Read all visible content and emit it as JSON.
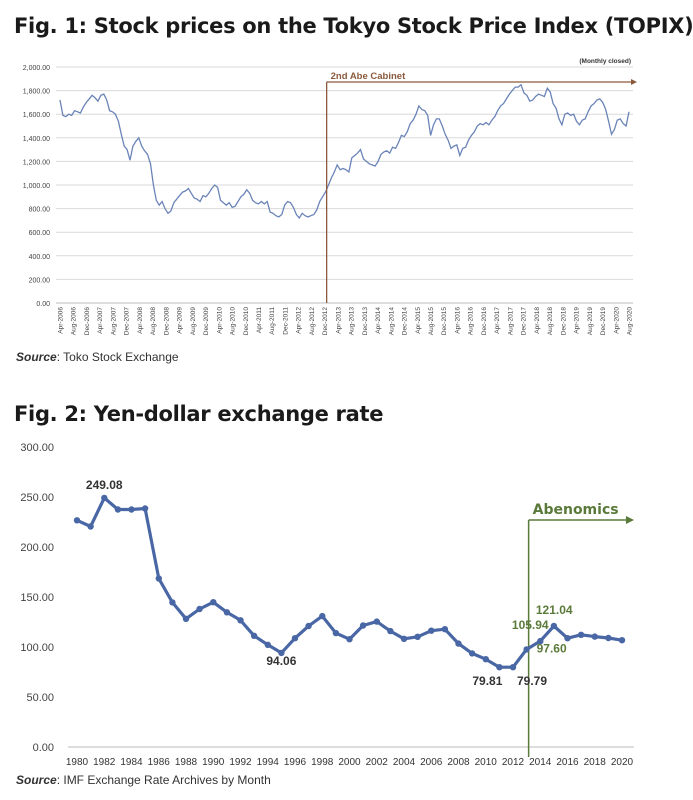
{
  "figures": [
    {
      "title": "Fig. 1: Stock prices on the Tokyo Stock Price Index (TOPIX)",
      "source_label": "Source",
      "source_text": ": Toko Stock Exchange"
    },
    {
      "title": "Fig. 2: Yen-dollar exchange rate",
      "source_label": "Source",
      "source_text": ":  IMF Exchange Rate Archives by Month"
    }
  ],
  "chart_data": [
    {
      "type": "line",
      "title": "Fig. 1: Stock prices on the Tokyo Stock Price Index (TOPIX)",
      "note": "(Monthly closed)",
      "ylim": [
        0,
        2000
      ],
      "yticks": [
        "0.00",
        "200.00",
        "400.00",
        "600.00",
        "800.00",
        "1,000.00",
        "1,200.00",
        "1,400.00",
        "1,600.00",
        "1,800.00",
        "2,000.00"
      ],
      "xticks": [
        "Apr-2006",
        "Aug-2006",
        "Dec-2006",
        "Apr-2007",
        "Aug-2007",
        "Dec-2007",
        "Apr-2008",
        "Aug-2008",
        "Dec-2008",
        "Apr-2009",
        "Aug-2009",
        "Dec-2009",
        "Apr-2010",
        "Aug-2010",
        "Dec-2010",
        "Apr-2011",
        "Aug-2011",
        "Dec-2011",
        "Apr-2012",
        "Aug-2012",
        "Dec-2012",
        "Apr-2013",
        "Aug-2013",
        "Dec-2013",
        "Apr-2014",
        "Aug-2014",
        "Dec-2014",
        "Apr-2015",
        "Aug-2015",
        "Dec-2015",
        "Apr-2016",
        "Aug-2016",
        "Dec-2016",
        "Apr-2017",
        "Aug-2017",
        "Dec-2017",
        "Apr-2018",
        "Aug-2018",
        "Dec-2018",
        "Apr-2019",
        "Aug-2019",
        "Dec-2019",
        "Apr-2020",
        "Aug-2020"
      ],
      "values": [
        1720,
        1590,
        1580,
        1600,
        1590,
        1630,
        1620,
        1610,
        1660,
        1700,
        1730,
        1760,
        1740,
        1710,
        1760,
        1770,
        1720,
        1630,
        1620,
        1600,
        1540,
        1430,
        1330,
        1300,
        1210,
        1330,
        1370,
        1400,
        1330,
        1290,
        1260,
        1180,
        1000,
        870,
        830,
        860,
        800,
        760,
        780,
        850,
        880,
        910,
        940,
        950,
        970,
        930,
        890,
        880,
        860,
        910,
        900,
        930,
        970,
        1000,
        980,
        870,
        850,
        830,
        850,
        810,
        820,
        860,
        900,
        920,
        960,
        930,
        870,
        850,
        840,
        860,
        840,
        860,
        770,
        760,
        740,
        730,
        750,
        830,
        860,
        850,
        810,
        750,
        720,
        760,
        740,
        730,
        740,
        750,
        790,
        860,
        900,
        940,
        1000,
        1060,
        1110,
        1170,
        1130,
        1140,
        1130,
        1110,
        1230,
        1250,
        1270,
        1300,
        1220,
        1200,
        1180,
        1170,
        1160,
        1200,
        1260,
        1280,
        1290,
        1270,
        1320,
        1310,
        1360,
        1420,
        1410,
        1450,
        1520,
        1550,
        1600,
        1670,
        1640,
        1630,
        1590,
        1420,
        1510,
        1560,
        1560,
        1500,
        1430,
        1380,
        1310,
        1330,
        1340,
        1250,
        1310,
        1320,
        1380,
        1420,
        1450,
        1500,
        1520,
        1510,
        1530,
        1510,
        1550,
        1580,
        1630,
        1670,
        1690,
        1730,
        1770,
        1800,
        1830,
        1830,
        1850,
        1780,
        1760,
        1710,
        1720,
        1750,
        1770,
        1760,
        1750,
        1820,
        1790,
        1690,
        1650,
        1560,
        1510,
        1600,
        1610,
        1590,
        1600,
        1540,
        1510,
        1550,
        1560,
        1620,
        1670,
        1690,
        1720,
        1730,
        1700,
        1640,
        1540,
        1430,
        1470,
        1550,
        1560,
        1520,
        1500,
        1620
      ],
      "annotation": {
        "label": "2nd Abe Cabinet",
        "start": "Dec-2012"
      }
    },
    {
      "type": "line",
      "title": "Fig. 2: Yen-dollar exchange rate",
      "ylim": [
        0,
        300
      ],
      "yticks": [
        "0.00",
        "50.00",
        "100.00",
        "150.00",
        "200.00",
        "250.00",
        "300.00"
      ],
      "x": [
        1980,
        1981,
        1982,
        1983,
        1984,
        1985,
        1986,
        1987,
        1988,
        1989,
        1990,
        1991,
        1992,
        1993,
        1994,
        1995,
        1996,
        1997,
        1998,
        1999,
        2000,
        2001,
        2002,
        2003,
        2004,
        2005,
        2006,
        2007,
        2008,
        2009,
        2010,
        2011,
        2012,
        2013,
        2014,
        2015,
        2016,
        2017,
        2018,
        2019,
        2020
      ],
      "xticks": [
        "1980",
        "1982",
        "1984",
        "1986",
        "1988",
        "1990",
        "1992",
        "1994",
        "1996",
        "1998",
        "2000",
        "2002",
        "2004",
        "2006",
        "2008",
        "2010",
        "2012",
        "2014",
        "2016",
        "2018",
        "2020"
      ],
      "values": [
        226.7,
        220.5,
        249.08,
        237.5,
        237.5,
        238.5,
        168.5,
        144.6,
        128.2,
        138.0,
        144.8,
        134.7,
        126.7,
        111.2,
        102.2,
        94.06,
        108.8,
        121.0,
        130.9,
        113.9,
        107.8,
        121.5,
        125.4,
        115.9,
        108.2,
        110.2,
        116.3,
        117.8,
        103.4,
        93.6,
        87.8,
        79.81,
        79.79,
        97.6,
        105.94,
        121.04,
        108.8,
        112.2,
        110.4,
        109.0,
        106.8
      ],
      "point_labels": [
        {
          "index": 2,
          "text": "249.08"
        },
        {
          "index": 15,
          "text": "94.06"
        },
        {
          "index": 31,
          "text": "79.81"
        },
        {
          "index": 32,
          "text": "79.79"
        },
        {
          "index": 33,
          "text": "97.60"
        },
        {
          "index": 34,
          "text": "105.94"
        },
        {
          "index": 35,
          "text": "121.04"
        }
      ],
      "annotation": {
        "label": "Abenomics",
        "start": 2013
      },
      "colors": {
        "line": "#4a67a5",
        "annotation": "#5a7a3a"
      }
    }
  ],
  "colors": {
    "line1": "#6b84b8",
    "annotation1": "#8b5a3c",
    "grid": "#d9d9d9"
  }
}
